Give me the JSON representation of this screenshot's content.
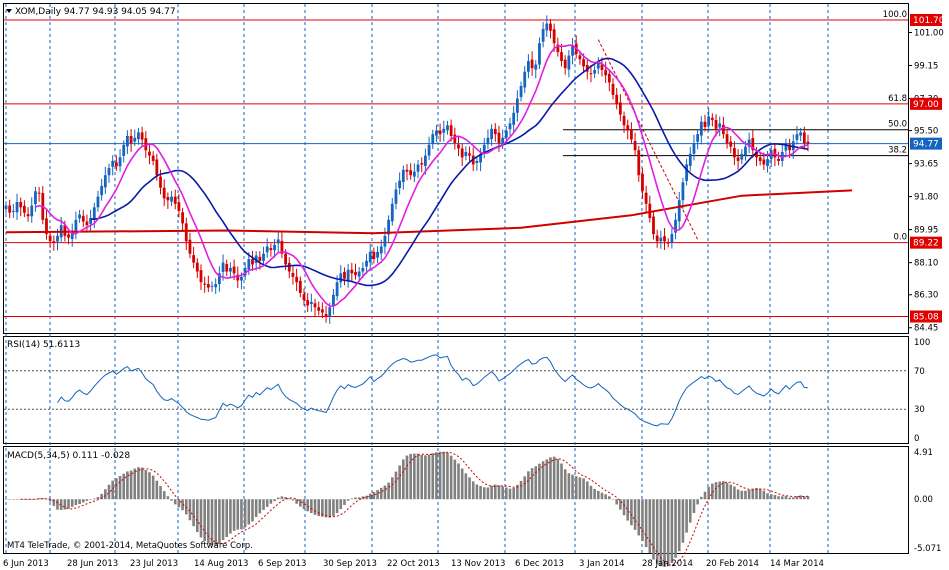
{
  "chart_data": [
    {
      "type": "candlestick",
      "symbol_header": "XOM,Daily  94.77 94.93 94.05 94.77",
      "ylim": [
        84.45,
        102.3
      ],
      "y_ticks": [
        "101.00",
        "99.15",
        "97.30",
        "95.50",
        "93.65",
        "91.80",
        "89.95",
        "88.10",
        "86.30",
        "84.45"
      ],
      "x_labels": [
        "6 Jun 2013",
        "28 Jun 2013",
        "23 Jul 2013",
        "14 Aug 2013",
        "6 Sep 2013",
        "30 Sep 2013",
        "22 Oct 2013",
        "13 Nov 2013",
        "6 Dec 2013",
        "3 Jan 2014",
        "28 Jan 2014",
        "20 Feb 2014",
        "14 Mar 2014"
      ],
      "price_tags": [
        {
          "label": "101.70",
          "value": 101.7,
          "color": "#e00000"
        },
        {
          "label": "97.00",
          "value": 97.0,
          "color": "#e00000"
        },
        {
          "label": "94.77",
          "value": 94.77,
          "color": "#1565c0"
        },
        {
          "label": "89.22",
          "value": 89.22,
          "color": "#e00000"
        },
        {
          "label": "85.08",
          "value": 85.08,
          "color": "#e00000"
        }
      ],
      "fibonacci": [
        {
          "label": "100.0",
          "value": 101.7
        },
        {
          "label": "61.8",
          "value": 97.0
        },
        {
          "label": "50.0",
          "value": 95.55
        },
        {
          "label": "38.2",
          "value": 94.1
        },
        {
          "label": "0.0",
          "value": 89.22
        }
      ],
      "close": [
        91.3,
        90.9,
        91.0,
        91.5,
        91.2,
        90.9,
        90.7,
        91.3,
        92.1,
        92.0,
        90.5,
        89.7,
        89.3,
        89.2,
        89.6,
        90.2,
        89.6,
        89.5,
        89.9,
        90.5,
        90.8,
        90.4,
        90.2,
        90.6,
        91.2,
        91.8,
        92.4,
        93.0,
        93.4,
        93.8,
        93.5,
        94.0,
        94.7,
        95.2,
        94.8,
        95.1,
        95.4,
        95.0,
        94.4,
        94.1,
        93.8,
        93.0,
        92.3,
        91.7,
        91.6,
        91.8,
        91.4,
        91.0,
        90.3,
        89.3,
        88.6,
        88.1,
        87.6,
        87.0,
        86.9,
        86.7,
        86.8,
        86.9,
        87.5,
        88.1,
        87.6,
        87.8,
        87.5,
        87.1,
        87.3,
        87.8,
        88.3,
        88.0,
        88.5,
        88.2,
        88.6,
        89.0,
        88.8,
        89.1,
        89.4,
        88.6,
        88.0,
        87.6,
        87.3,
        87.0,
        86.4,
        86.0,
        85.7,
        85.9,
        85.6,
        85.4,
        85.3,
        85.1,
        85.6,
        86.3,
        87.0,
        87.5,
        87.2,
        87.7,
        87.5,
        87.4,
        87.6,
        87.8,
        88.2,
        88.7,
        88.3,
        88.7,
        89.0,
        89.6,
        90.5,
        91.4,
        92.2,
        92.7,
        93.3,
        93.2,
        93.0,
        93.2,
        93.6,
        93.6,
        94.1,
        94.7,
        95.3,
        95.5,
        95.3,
        95.6,
        95.8,
        95.2,
        94.8,
        94.5,
        94.0,
        94.3,
        94.1,
        93.6,
        93.8,
        94.2,
        94.7,
        95.1,
        95.6,
        95.3,
        94.8,
        95.1,
        95.5,
        95.9,
        96.5,
        97.3,
        98.0,
        98.8,
        99.4,
        99.0,
        99.2,
        100.4,
        101.2,
        101.5,
        101.1,
        100.4,
        99.9,
        99.4,
        99.0,
        99.7,
        100.3,
        99.8,
        99.5,
        99.1,
        98.8,
        98.7,
        98.9,
        99.3,
        98.9,
        98.6,
        98.2,
        97.5,
        97.0,
        96.4,
        95.8,
        95.5,
        95.0,
        94.4,
        93.0,
        92.1,
        91.4,
        90.6,
        89.7,
        89.3,
        89.5,
        89.3,
        89.2,
        89.7,
        90.5,
        91.6,
        92.6,
        93.6,
        94.2,
        94.8,
        95.3,
        96.0,
        95.7,
        96.3,
        96.1,
        95.6,
        95.9,
        95.3,
        94.8,
        94.6,
        94.0,
        93.8,
        94.2,
        94.6,
        95.0,
        94.4,
        94.0,
        93.8,
        93.6,
        93.9,
        94.4,
        94.0,
        93.8,
        94.3,
        94.8,
        94.4,
        94.9,
        95.3,
        95.4,
        94.8,
        94.77
      ],
      "sma_pink_start": 8,
      "sma_pink_period": 9,
      "sma_blue_start": 22,
      "sma_blue_period": 24,
      "sma_red": [
        [
          0,
          89.8
        ],
        [
          60,
          89.9
        ],
        [
          100,
          89.75
        ],
        [
          140,
          90.05
        ],
        [
          170,
          90.75
        ],
        [
          200,
          91.85
        ],
        [
          230,
          92.15
        ]
      ],
      "fib_trend": [
        [
          161,
          100.6
        ],
        [
          188,
          89.4
        ]
      ],
      "panes": [
        {
          "name": "RSI",
          "label": "RSI(14) 51.6113",
          "ylim": [
            0,
            100
          ],
          "levels": [
            70,
            30
          ],
          "y_ticks": [
            "100",
            "70",
            "30",
            "0"
          ],
          "values_sample": [
            51.6
          ]
        },
        {
          "name": "MACD",
          "label": "MACD(5,34,5) 0.111 -0.028",
          "ylim": [
            -5.071,
            4.91
          ],
          "y_ticks": [
            "4.91",
            "0.00",
            "-5.071"
          ],
          "last_main": 0.111,
          "last_signal": -0.028
        }
      ],
      "footer": "MT4 TeleTrade, © 2001-2014, MetaQuotes Software Corp."
    }
  ],
  "colors": {
    "bull": "#1565c0",
    "bear": "#d50000",
    "pink_ma": "#e020e0",
    "blue_ma": "#0a1aa8",
    "red_ma": "#d00000",
    "grid": "#1565c0",
    "rsi": "#1565c0",
    "macd_hist": "#808080",
    "macd_signal": "#d00000"
  }
}
